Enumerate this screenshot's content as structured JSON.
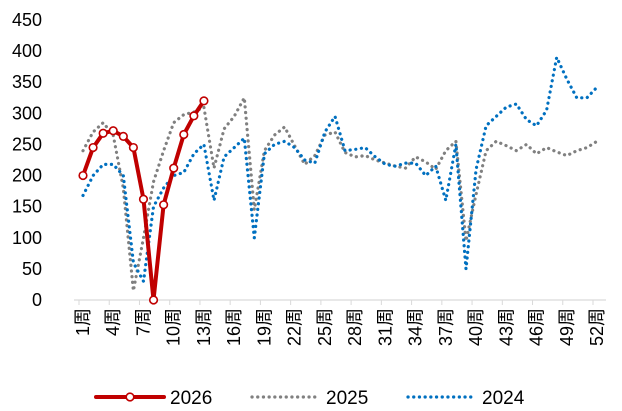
{
  "chart_data": {
    "type": "line",
    "title": "",
    "xlabel": "",
    "ylabel": "",
    "ylim": [
      0,
      450
    ],
    "yticks": [
      0,
      50,
      100,
      150,
      200,
      250,
      300,
      350,
      400,
      450
    ],
    "x_ticks": [
      "1周",
      "4周",
      "7周",
      "10周",
      "13周",
      "16周",
      "19周",
      "22周",
      "25周",
      "28周",
      "31周",
      "34周",
      "37周",
      "40周",
      "43周",
      "46周",
      "49周",
      "52周"
    ],
    "x_tick_weeks": [
      1,
      4,
      7,
      10,
      13,
      16,
      19,
      22,
      25,
      28,
      31,
      34,
      37,
      40,
      43,
      46,
      49,
      52
    ],
    "x_range": [
      1,
      52
    ],
    "grid": false,
    "legend_position": "bottom",
    "series": [
      {
        "name": "2026",
        "color": "#c00000",
        "style": "solid-markers",
        "x": [
          1,
          2,
          3,
          4,
          5,
          6,
          7,
          8,
          9,
          10,
          11,
          12,
          13
        ],
        "values": [
          200,
          245,
          268,
          272,
          263,
          245,
          162,
          0,
          153,
          212,
          266,
          296,
          320
        ]
      },
      {
        "name": "2025",
        "color": "#808080",
        "style": "dotted",
        "x": [
          1,
          2,
          3,
          4,
          5,
          6,
          7,
          8,
          9,
          10,
          11,
          12,
          13,
          14,
          15,
          16,
          17,
          18,
          19,
          20,
          21,
          22,
          23,
          24,
          25,
          26,
          27,
          28,
          29,
          30,
          31,
          32,
          33,
          34,
          35,
          36,
          37,
          38,
          39,
          40,
          41,
          42,
          43,
          44,
          45,
          46,
          47,
          48,
          49,
          50,
          51,
          52
        ],
        "values": [
          240,
          270,
          285,
          265,
          180,
          15,
          100,
          190,
          240,
          285,
          298,
          302,
          310,
          212,
          275,
          295,
          325,
          145,
          240,
          265,
          278,
          248,
          218,
          232,
          265,
          270,
          237,
          230,
          232,
          225,
          220,
          215,
          212,
          230,
          222,
          210,
          240,
          255,
          95,
          170,
          240,
          255,
          248,
          240,
          250,
          235,
          245,
          238,
          232,
          240,
          245,
          255
        ]
      },
      {
        "name": "2024",
        "color": "#0070c0",
        "style": "dotted",
        "x": [
          1,
          2,
          3,
          4,
          5,
          6,
          7,
          8,
          9,
          10,
          11,
          12,
          13,
          14,
          15,
          16,
          17,
          18,
          19,
          20,
          21,
          22,
          23,
          24,
          25,
          26,
          27,
          28,
          29,
          30,
          31,
          32,
          33,
          34,
          35,
          36,
          37,
          38,
          39,
          40,
          41,
          42,
          43,
          44,
          45,
          46,
          47,
          48,
          49,
          50,
          51,
          52
        ],
        "values": [
          168,
          200,
          218,
          218,
          200,
          60,
          30,
          150,
          180,
          200,
          205,
          235,
          250,
          160,
          230,
          245,
          260,
          100,
          235,
          250,
          255,
          245,
          225,
          220,
          270,
          295,
          240,
          242,
          245,
          230,
          218,
          215,
          220,
          220,
          200,
          215,
          160,
          250,
          50,
          210,
          280,
          295,
          310,
          315,
          290,
          280,
          305,
          390,
          355,
          325,
          325,
          342
        ]
      }
    ]
  }
}
